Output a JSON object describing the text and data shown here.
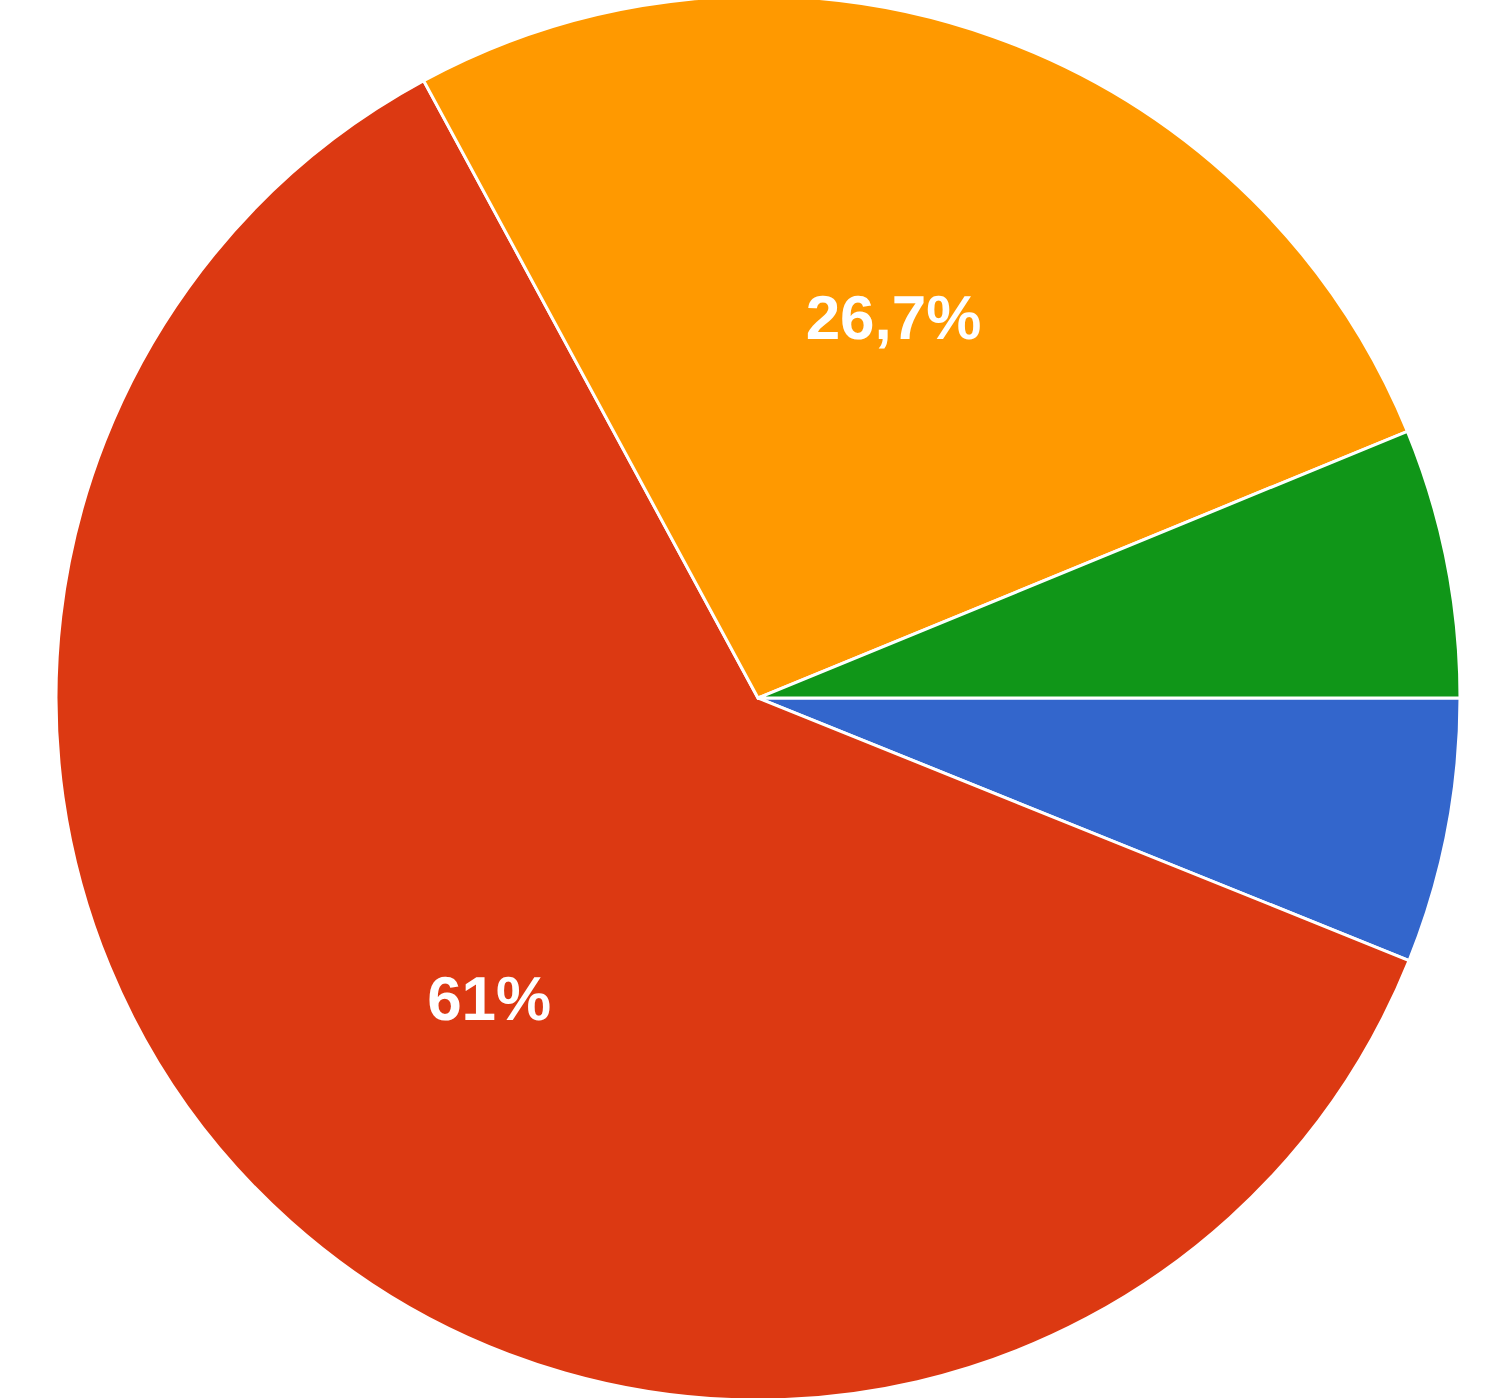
{
  "chart_data": {
    "type": "pie",
    "categories": [
      null,
      null,
      null,
      null
    ],
    "values": [
      6.1,
      61,
      26.7,
      6.2
    ],
    "colors": [
      "#3366cc",
      "#dc3912",
      "#ff9900",
      "#109618"
    ],
    "value_labels": [
      null,
      "61%",
      "26,7%",
      null
    ]
  }
}
